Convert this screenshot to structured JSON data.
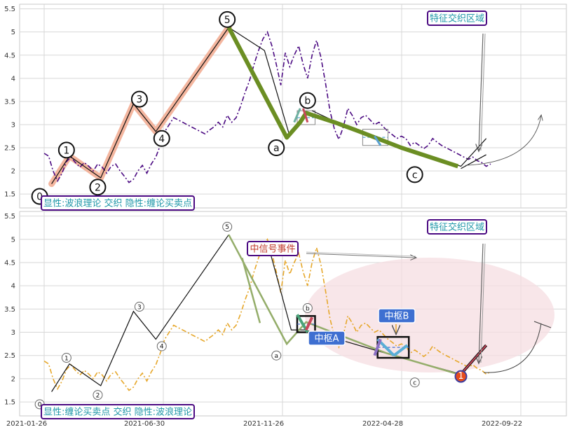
{
  "chart_data": [
    {
      "type": "line",
      "ylim": [
        1.2,
        5.6
      ],
      "yticks": [
        1.5,
        2.0,
        2.5,
        3.0,
        3.5,
        4.0,
        4.5,
        5.0,
        5.5
      ],
      "grid": true,
      "price": [
        [
          0,
          2.38
        ],
        [
          3,
          2.32
        ],
        [
          6,
          2.0
        ],
        [
          9,
          1.78
        ],
        [
          12,
          1.95
        ],
        [
          15,
          2.2
        ],
        [
          18,
          2.3
        ],
        [
          21,
          2.18
        ],
        [
          24,
          2.08
        ],
        [
          27,
          2.18
        ],
        [
          30,
          2.1
        ],
        [
          33,
          2.0
        ],
        [
          36,
          2.15
        ],
        [
          39,
          2.08
        ],
        [
          42,
          1.95
        ],
        [
          45,
          2.1
        ],
        [
          48,
          2.15
        ],
        [
          51,
          2.0
        ],
        [
          54,
          1.88
        ],
        [
          57,
          1.75
        ],
        [
          60,
          1.82
        ],
        [
          63,
          2.0
        ],
        [
          66,
          2.12
        ],
        [
          69,
          1.95
        ],
        [
          72,
          2.15
        ],
        [
          75,
          2.3
        ],
        [
          78,
          2.55
        ],
        [
          81,
          2.85
        ],
        [
          84,
          3.0
        ],
        [
          87,
          3.15
        ],
        [
          90,
          3.1
        ],
        [
          93,
          3.05
        ],
        [
          96,
          3.0
        ],
        [
          99,
          2.95
        ],
        [
          102,
          2.9
        ],
        [
          105,
          2.85
        ],
        [
          108,
          2.8
        ],
        [
          111,
          2.88
        ],
        [
          114,
          2.95
        ],
        [
          117,
          3.05
        ],
        [
          120,
          2.95
        ],
        [
          123,
          3.2
        ],
        [
          126,
          3.05
        ],
        [
          129,
          3.15
        ],
        [
          132,
          3.4
        ],
        [
          135,
          3.7
        ],
        [
          138,
          3.95
        ],
        [
          141,
          4.3
        ],
        [
          144,
          4.6
        ],
        [
          147,
          4.85
        ],
        [
          150,
          5.0
        ],
        [
          153,
          4.7
        ],
        [
          156,
          4.3
        ],
        [
          159,
          3.85
        ],
        [
          162,
          4.55
        ],
        [
          165,
          4.25
        ],
        [
          168,
          4.5
        ],
        [
          171,
          4.7
        ],
        [
          174,
          4.3
        ],
        [
          177,
          4.0
        ],
        [
          180,
          4.5
        ],
        [
          183,
          4.82
        ],
        [
          186,
          4.45
        ],
        [
          189,
          3.9
        ],
        [
          192,
          3.3
        ],
        [
          195,
          2.9
        ],
        [
          198,
          2.68
        ],
        [
          201,
          2.95
        ],
        [
          204,
          3.35
        ],
        [
          207,
          3.2
        ],
        [
          210,
          3.0
        ],
        [
          213,
          3.15
        ],
        [
          216,
          3.2
        ],
        [
          219,
          3.1
        ],
        [
          222,
          3.0
        ],
        [
          225,
          3.05
        ],
        [
          228,
          2.95
        ],
        [
          231,
          2.85
        ],
        [
          234,
          2.78
        ],
        [
          237,
          2.7
        ],
        [
          240,
          2.75
        ],
        [
          243,
          2.7
        ],
        [
          246,
          2.55
        ],
        [
          249,
          2.62
        ],
        [
          252,
          2.55
        ],
        [
          255,
          2.48
        ],
        [
          258,
          2.55
        ],
        [
          261,
          2.7
        ],
        [
          264,
          2.62
        ],
        [
          267,
          2.55
        ],
        [
          270,
          2.5
        ],
        [
          273,
          2.45
        ],
        [
          276,
          2.4
        ],
        [
          279,
          2.35
        ],
        [
          282,
          2.3
        ],
        [
          285,
          2.25
        ],
        [
          288,
          2.3
        ],
        [
          291,
          2.22
        ],
        [
          294,
          2.18
        ],
        [
          297,
          2.1
        ],
        [
          300,
          2.15
        ]
      ],
      "zigzag": [
        [
          5,
          1.72
        ],
        [
          17,
          2.32
        ],
        [
          38,
          1.85
        ],
        [
          60,
          3.45
        ],
        [
          75,
          2.85
        ],
        [
          124,
          5.1
        ],
        [
          163,
          2.75
        ],
        [
          180,
          3.58
        ],
        [
          210,
          2.65
        ],
        [
          247,
          2.35
        ],
        [
          280,
          2.1
        ]
      ],
      "thin_line": [
        [
          5,
          1.72
        ],
        [
          17,
          2.32
        ],
        [
          38,
          1.85
        ],
        [
          60,
          3.45
        ],
        [
          75,
          2.85
        ],
        [
          124,
          5.1
        ],
        [
          148,
          4.6
        ]
      ],
      "thick_line": [
        [
          124,
          5.1
        ],
        [
          163,
          2.72
        ],
        [
          172,
          3.05
        ],
        [
          176,
          3.25
        ],
        [
          195,
          3.05
        ],
        [
          212,
          2.85
        ],
        [
          240,
          2.5
        ],
        [
          278,
          2.1
        ]
      ],
      "zhongshu_boxes": [
        [
          [
            170,
            3.0
          ],
          [
            182,
            3.3
          ]
        ],
        [
          [
            214,
            2.55
          ],
          [
            231,
            2.9
          ]
        ]
      ],
      "wave_labels": [
        {
          "text": "0",
          "x": -3,
          "y": 1.45
        },
        {
          "text": "1",
          "x": 15,
          "y": 2.45
        },
        {
          "text": "2",
          "x": 36,
          "y": 1.65
        },
        {
          "text": "3",
          "x": 64,
          "y": 3.55
        },
        {
          "text": "4",
          "x": 79,
          "y": 2.7
        },
        {
          "text": "5",
          "x": 123,
          "y": 5.27
        },
        {
          "text": "a",
          "x": 156,
          "y": 2.5
        },
        {
          "text": "b",
          "x": 177,
          "y": 3.52
        },
        {
          "text": "c",
          "x": 249,
          "y": 1.92
        }
      ],
      "annotations": [
        {
          "text": "特征交织区域",
          "kind": "boxed"
        },
        {
          "text": "显性:波浪理论 交织 隐性:缠论买卖点",
          "kind": "boxed"
        }
      ]
    },
    {
      "type": "line",
      "ylim": [
        1.2,
        5.6
      ],
      "yticks": [
        1.5,
        2.0,
        2.5,
        3.0,
        3.5,
        4.0,
        4.5,
        5.0,
        5.5
      ],
      "xticks": [
        "2021-01-26",
        "2021-06-30",
        "2021-11-26",
        "2022-04-28",
        "2022-09-22"
      ],
      "grid": true,
      "wave_labels": [
        {
          "text": "0",
          "x": -3,
          "y": 1.45
        },
        {
          "text": "1",
          "x": 15,
          "y": 2.45
        },
        {
          "text": "2",
          "x": 36,
          "y": 1.65
        },
        {
          "text": "3",
          "x": 64,
          "y": 3.55
        },
        {
          "text": "4",
          "x": 79,
          "y": 2.7
        },
        {
          "text": "5",
          "x": 123,
          "y": 5.27
        },
        {
          "text": "a",
          "x": 156,
          "y": 2.5
        },
        {
          "text": "b",
          "x": 177,
          "y": 3.52
        },
        {
          "text": "c",
          "x": 249,
          "y": 1.92
        }
      ],
      "annotations": [
        {
          "text": "中信号事件",
          "kind": "boxed"
        },
        {
          "text": "特征交织区域",
          "kind": "boxed"
        },
        {
          "text": "中枢A",
          "kind": "filled"
        },
        {
          "text": "中枢B",
          "kind": "filled"
        },
        {
          "text": "显性:缠论买卖点 交织 隐性:波浪理论",
          "kind": "boxed"
        }
      ],
      "signal_marker": "1"
    }
  ],
  "colors": {
    "price_top": "#4b0a82",
    "price_bottom": "#e6a72a",
    "olive": "#6b8e23",
    "salmon": "#f2a98e",
    "purple_box": "#4b0a82",
    "teal_text": "#1f97a8",
    "red_text": "#c0392b",
    "blue_fill": "#3e6fd1",
    "ellipse": "#f6dde2"
  }
}
